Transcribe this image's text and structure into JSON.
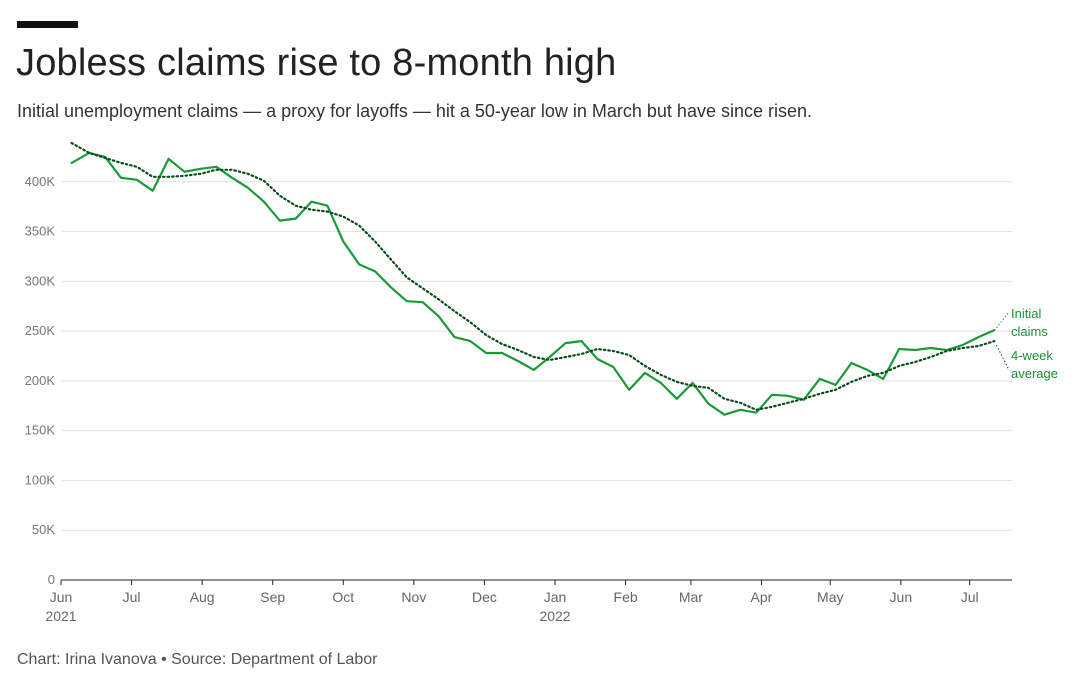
{
  "header": {
    "title": "Jobless claims rise to 8-month high",
    "subtitle": "Initial unemployment claims — a proxy for layoffs — hit a 50-year low in March but have since risen."
  },
  "footer": {
    "credit": "Chart: Irina Ivanova • Source: Department of Labor"
  },
  "colors": {
    "initial": "#1a9a37",
    "average": "#0b4d1c",
    "grid": "#e3e3e3",
    "axis": "#222222",
    "label": "#1a8f34"
  },
  "chart_data": {
    "type": "line",
    "title": "Jobless claims rise to 8-month high",
    "subtitle": "Initial unemployment claims — a proxy for layoffs — hit a 50-year low in March but have since risen.",
    "xlabel": "",
    "ylabel": "",
    "ylim": [
      0,
      450000
    ],
    "grid": true,
    "y_ticks": [
      {
        "value": 0,
        "label": "0"
      },
      {
        "value": 50000,
        "label": "50K"
      },
      {
        "value": 100000,
        "label": "100K"
      },
      {
        "value": 150000,
        "label": "150K"
      },
      {
        "value": 200000,
        "label": "200K"
      },
      {
        "value": 250000,
        "label": "250K"
      },
      {
        "value": 300000,
        "label": "300K"
      },
      {
        "value": 350000,
        "label": "350K"
      },
      {
        "value": 400000,
        "label": "400K"
      }
    ],
    "x_ticks": [
      {
        "week": 0,
        "label": "Jun",
        "sub": "2021"
      },
      {
        "week": 4,
        "label": "Jul",
        "sub": ""
      },
      {
        "week": 8,
        "label": "Aug",
        "sub": ""
      },
      {
        "week": 12,
        "label": "Sep",
        "sub": ""
      },
      {
        "week": 16,
        "label": "Oct",
        "sub": ""
      },
      {
        "week": 20,
        "label": "Nov",
        "sub": ""
      },
      {
        "week": 24,
        "label": "Dec",
        "sub": ""
      },
      {
        "week": 28,
        "label": "Jan",
        "sub": "2022"
      },
      {
        "week": 32,
        "label": "Feb",
        "sub": ""
      },
      {
        "week": 35.7,
        "label": "Mar",
        "sub": ""
      },
      {
        "week": 39.7,
        "label": "Apr",
        "sub": ""
      },
      {
        "week": 43.6,
        "label": "May",
        "sub": ""
      },
      {
        "week": 47.6,
        "label": "Jun",
        "sub": ""
      },
      {
        "week": 51.5,
        "label": "Jul",
        "sub": ""
      }
    ],
    "x_domain": [
      0,
      53.9
    ],
    "series": [
      {
        "name": "Initial claims",
        "label_lines": [
          "Initial",
          "claims"
        ],
        "style": "solid",
        "x": [
          0.6,
          1.6,
          2.5,
          3.4,
          4.3,
          5.2,
          6.1,
          7.0,
          7.9,
          8.8,
          9.7,
          10.6,
          11.5,
          12.4,
          13.3,
          14.2,
          15.1,
          16.0,
          16.9,
          17.8,
          18.7,
          19.6,
          20.5,
          21.4,
          22.3,
          23.2,
          24.1,
          25.0,
          25.9,
          26.8,
          27.7,
          28.6,
          29.5,
          30.4,
          31.3,
          32.2,
          33.1,
          34.0,
          34.9,
          35.8,
          36.7,
          37.6,
          38.5,
          39.4,
          40.3,
          41.2,
          42.1,
          43.0,
          43.9,
          44.8,
          45.7,
          46.6,
          47.5,
          48.4,
          49.3,
          50.2,
          51.1,
          52.0,
          52.9
        ],
        "y": [
          419000,
          429000,
          425000,
          404000,
          402000,
          391000,
          423000,
          410000,
          413000,
          415000,
          404000,
          394000,
          380000,
          361000,
          363000,
          380000,
          376000,
          340000,
          317000,
          310000,
          294000,
          280000,
          279000,
          265000,
          244000,
          240000,
          228000,
          228000,
          220000,
          211000,
          224000,
          238000,
          240000,
          222000,
          214000,
          191000,
          208000,
          198000,
          182000,
          198000,
          177000,
          166000,
          171000,
          168000,
          186000,
          185000,
          181000,
          202000,
          196000,
          218000,
          211000,
          202000,
          232000,
          231000,
          233000,
          231000,
          236000,
          244000,
          251000
        ]
      },
      {
        "name": "4-week average",
        "label_lines": [
          "4-week",
          "average"
        ],
        "style": "dotted",
        "x": [
          0.6,
          1.6,
          2.5,
          3.4,
          4.3,
          5.2,
          6.1,
          7.0,
          7.9,
          8.8,
          9.7,
          10.6,
          11.5,
          12.4,
          13.3,
          14.2,
          15.1,
          16.0,
          16.9,
          17.8,
          18.7,
          19.6,
          20.5,
          21.4,
          22.3,
          23.2,
          24.1,
          25.0,
          25.9,
          26.8,
          27.7,
          28.6,
          29.5,
          30.4,
          31.3,
          32.2,
          33.1,
          34.0,
          34.9,
          35.8,
          36.7,
          37.6,
          38.5,
          39.4,
          40.3,
          41.2,
          42.1,
          43.0,
          43.9,
          44.8,
          45.7,
          46.6,
          47.5,
          48.4,
          49.3,
          50.2,
          51.1,
          52.0,
          52.9
        ],
        "y": [
          439000,
          429000,
          424000,
          419000,
          415000,
          405000,
          405000,
          406000,
          408000,
          412000,
          412000,
          408000,
          401000,
          386000,
          376000,
          372000,
          370000,
          365000,
          356000,
          340000,
          322000,
          304000,
          293000,
          282000,
          270000,
          259000,
          246000,
          237000,
          231000,
          224000,
          221000,
          224000,
          227000,
          232000,
          230000,
          226000,
          215000,
          206000,
          199000,
          195000,
          193000,
          182000,
          178000,
          171000,
          174000,
          178000,
          182000,
          187000,
          191000,
          199000,
          205000,
          208000,
          215000,
          219000,
          224000,
          230000,
          233000,
          235000,
          240000
        ]
      }
    ]
  }
}
